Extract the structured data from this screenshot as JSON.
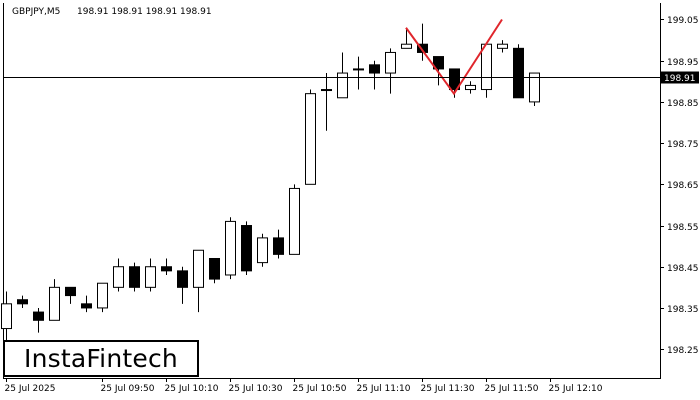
{
  "header": {
    "symbol": "GBPJPY,M5",
    "ohlc": "198.91 198.91 198.91 198.91"
  },
  "price_label": "198.91",
  "logo": {
    "text": "InstaFintech"
  },
  "colors": {
    "bull_fill": "#ffffff",
    "bear_fill": "#000000",
    "pattern_line": "#e0262c",
    "axis": "#000000"
  },
  "chart_data": {
    "type": "candlestick",
    "title": "",
    "current_price": 198.91,
    "ylim": [
      198.18,
      199.09
    ],
    "y_ticks": [
      "199.05",
      "198.95",
      "198.85",
      "198.75",
      "198.65",
      "198.55",
      "198.45",
      "198.35",
      "198.25"
    ],
    "x_tick_labels": [
      {
        "label": "25 Jul 2025",
        "index": 0
      },
      {
        "label": "25 Jul 09:50",
        "index": 6
      },
      {
        "label": "25 Jul 10:10",
        "index": 10
      },
      {
        "label": "25 Jul 10:30",
        "index": 14
      },
      {
        "label": "25 Jul 10:50",
        "index": 18
      },
      {
        "label": "25 Jul 11:10",
        "index": 22
      },
      {
        "label": "25 Jul 11:30",
        "index": 26
      },
      {
        "label": "25 Jul 11:50",
        "index": 30
      },
      {
        "label": "25 Jul 12:10",
        "index": 34
      }
    ],
    "candles": [
      {
        "o": 198.3,
        "h": 198.39,
        "l": 198.26,
        "c": 198.36
      },
      {
        "o": 198.37,
        "h": 198.38,
        "l": 198.35,
        "c": 198.36
      },
      {
        "o": 198.34,
        "h": 198.35,
        "l": 198.29,
        "c": 198.32
      },
      {
        "o": 198.32,
        "h": 198.42,
        "l": 198.32,
        "c": 198.4
      },
      {
        "o": 198.4,
        "h": 198.4,
        "l": 198.36,
        "c": 198.38
      },
      {
        "o": 198.36,
        "h": 198.38,
        "l": 198.34,
        "c": 198.35
      },
      {
        "o": 198.35,
        "h": 198.41,
        "l": 198.34,
        "c": 198.41
      },
      {
        "o": 198.4,
        "h": 198.47,
        "l": 198.39,
        "c": 198.45
      },
      {
        "o": 198.45,
        "h": 198.46,
        "l": 198.39,
        "c": 198.4
      },
      {
        "o": 198.4,
        "h": 198.47,
        "l": 198.39,
        "c": 198.45
      },
      {
        "o": 198.45,
        "h": 198.47,
        "l": 198.43,
        "c": 198.44
      },
      {
        "o": 198.44,
        "h": 198.45,
        "l": 198.36,
        "c": 198.4
      },
      {
        "o": 198.4,
        "h": 198.49,
        "l": 198.34,
        "c": 198.49
      },
      {
        "o": 198.47,
        "h": 198.47,
        "l": 198.41,
        "c": 198.42
      },
      {
        "o": 198.43,
        "h": 198.57,
        "l": 198.42,
        "c": 198.56
      },
      {
        "o": 198.55,
        "h": 198.56,
        "l": 198.43,
        "c": 198.44
      },
      {
        "o": 198.46,
        "h": 198.53,
        "l": 198.45,
        "c": 198.52
      },
      {
        "o": 198.52,
        "h": 198.54,
        "l": 198.47,
        "c": 198.48
      },
      {
        "o": 198.48,
        "h": 198.65,
        "l": 198.48,
        "c": 198.64
      },
      {
        "o": 198.65,
        "h": 198.88,
        "l": 198.65,
        "c": 198.87
      },
      {
        "o": 198.88,
        "h": 198.92,
        "l": 198.78,
        "c": 198.88
      },
      {
        "o": 198.86,
        "h": 198.97,
        "l": 198.86,
        "c": 198.92
      },
      {
        "o": 198.93,
        "h": 198.96,
        "l": 198.88,
        "c": 198.93
      },
      {
        "o": 198.94,
        "h": 198.95,
        "l": 198.88,
        "c": 198.92
      },
      {
        "o": 198.92,
        "h": 198.98,
        "l": 198.87,
        "c": 198.97
      },
      {
        "o": 198.98,
        "h": 199.03,
        "l": 198.98,
        "c": 198.99
      },
      {
        "o": 198.99,
        "h": 199.04,
        "l": 198.95,
        "c": 198.97
      },
      {
        "o": 198.96,
        "h": 198.96,
        "l": 198.89,
        "c": 198.93
      },
      {
        "o": 198.93,
        "h": 198.93,
        "l": 198.86,
        "c": 198.88
      },
      {
        "o": 198.88,
        "h": 198.9,
        "l": 198.87,
        "c": 198.89
      },
      {
        "o": 198.88,
        "h": 198.99,
        "l": 198.86,
        "c": 198.99
      },
      {
        "o": 198.98,
        "h": 199.0,
        "l": 198.97,
        "c": 198.99
      },
      {
        "o": 198.98,
        "h": 198.99,
        "l": 198.86,
        "c": 198.86
      },
      {
        "o": 198.85,
        "h": 198.92,
        "l": 198.84,
        "c": 198.92
      }
    ],
    "pattern_line": {
      "type": "double-top",
      "points": [
        {
          "index": 25,
          "price": 199.03
        },
        {
          "index": 28,
          "price": 198.87
        },
        {
          "index": 31,
          "price": 199.05
        }
      ]
    }
  }
}
